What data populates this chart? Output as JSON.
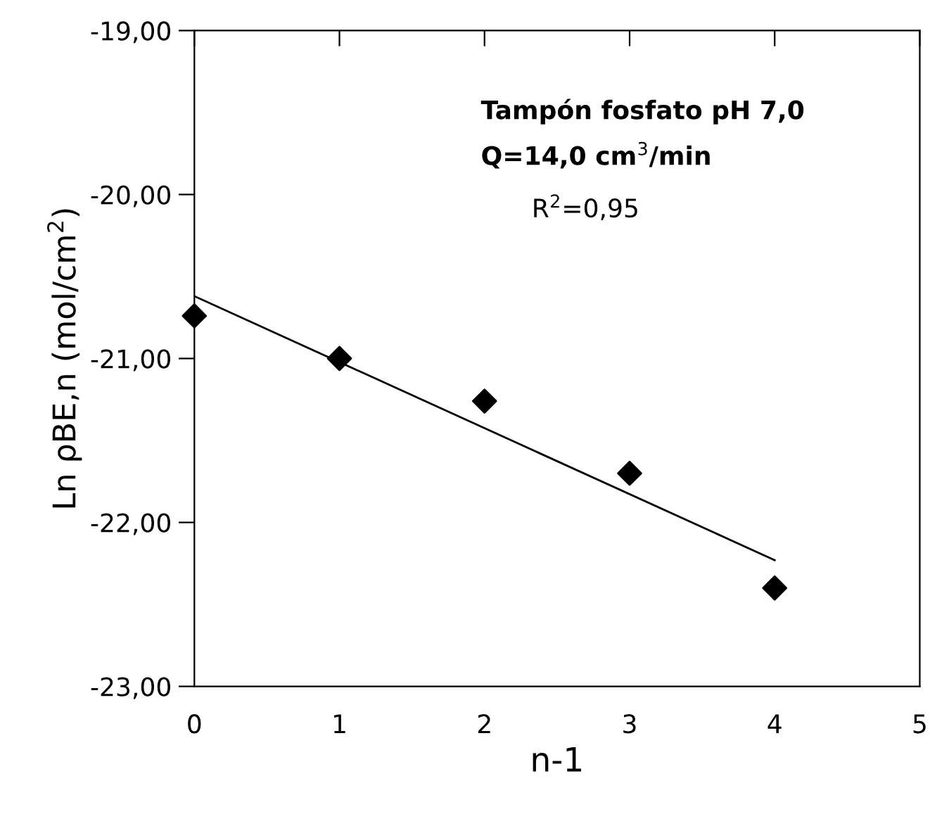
{
  "chart_data": {
    "type": "scatter",
    "xlabel": "n-1",
    "ylabel": "Ln ρBE,n (mol/cm$^{2}$)",
    "x": [
      0,
      1,
      2,
      3,
      4
    ],
    "series": [
      {
        "color": "#000000",
        "marker": "diamond",
        "values": [
          -20.74,
          -21.0,
          -21.26,
          -21.7,
          -22.4
        ]
      },
      {
        "type": "line",
        "color": "#000000",
        "x": [
          0,
          4
        ],
        "values": [
          -20.62,
          -22.23
        ]
      }
    ],
    "xlim": [
      0,
      5
    ],
    "xticks": [
      0,
      1,
      2,
      3,
      4,
      5
    ],
    "ylim": [
      -23,
      -19
    ],
    "yticks": [
      {
        "value": -23,
        "label": "-23,00"
      },
      {
        "value": -22,
        "label": "-22,00"
      },
      {
        "value": -21,
        "label": "-21,00"
      },
      {
        "value": -20,
        "label": "-20,00"
      },
      {
        "value": -19,
        "label": "-19,00"
      }
    ],
    "grid": false,
    "legend": false,
    "annotations": [
      "Tampón fosfato pH 7,0",
      "Q=14,0 cm$^{3}$/min",
      "R$^{2}$=0,95"
    ]
  }
}
